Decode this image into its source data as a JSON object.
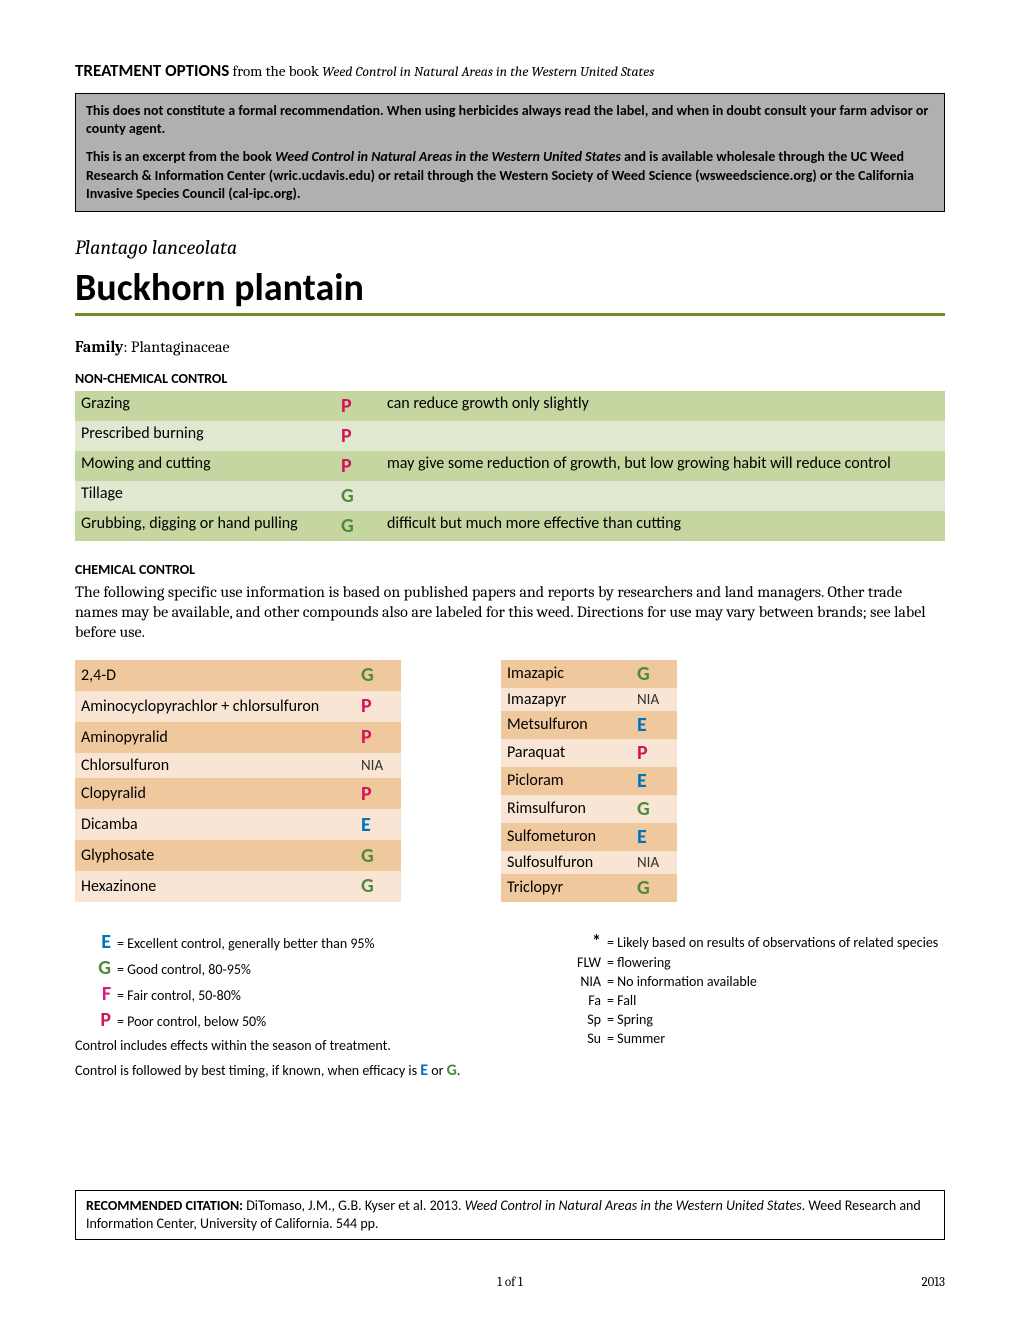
{
  "header": {
    "title_bold": "TREATMENT OPTIONS",
    "title_rest": " from the book ",
    "title_italic": "Weed Control in Natural Areas in the Western United States"
  },
  "disclaimer": {
    "p1": "This does not constitute a formal recommendation. When using herbicides always read the label, and when in doubt consult your farm advisor or county agent.",
    "p2a": "This is an excerpt from the book ",
    "p2b_italic": "Weed Control in Natural Areas in the Western United States",
    "p2c": " and is available wholesale through the UC Weed Research & Information Center (wric.ucdavis.edu) or retail through the Western Society of Weed Science (wsweedscience.org) or the California Invasive Species Council (cal-ipc.org)."
  },
  "species": {
    "latin": "Plantago lanceolata",
    "common": "Buckhorn plantain",
    "family_label": "Family",
    "family": ": Plantaginaceae"
  },
  "non_chemical": {
    "header": "NON-CHEMICAL CONTROL",
    "rows": [
      {
        "method": "Grazing",
        "rating": "P",
        "note": "can reduce growth only slightly"
      },
      {
        "method": "Prescribed burning",
        "rating": "P",
        "note": ""
      },
      {
        "method": "Mowing and cutting",
        "rating": "P",
        "note": "may give some reduction of growth, but low growing habit will reduce control"
      },
      {
        "method": "Tillage",
        "rating": "G",
        "note": ""
      },
      {
        "method": "Grubbing, digging or hand pulling",
        "rating": "G",
        "note": "difficult but much more effective than cutting"
      }
    ]
  },
  "chemical": {
    "header": "CHEMICAL CONTROL",
    "intro": "The following specific use information is based on published papers and reports by researchers and land managers. Other trade names may be available, and other compounds also are labeled for this weed. Directions for use may vary between brands; see label before use.",
    "left": [
      {
        "name": "2,4-D",
        "rating": "G"
      },
      {
        "name": "Aminocyclopyrachlor + chlorsulfuron",
        "rating": "P"
      },
      {
        "name": "Aminopyralid",
        "rating": "P"
      },
      {
        "name": "Chlorsulfuron",
        "rating": "NIA"
      },
      {
        "name": "Clopyralid",
        "rating": "P"
      },
      {
        "name": "Dicamba",
        "rating": "E"
      },
      {
        "name": "Glyphosate",
        "rating": "G"
      },
      {
        "name": "Hexazinone",
        "rating": "G"
      }
    ],
    "right": [
      {
        "name": "Imazapic",
        "rating": "G"
      },
      {
        "name": "Imazapyr",
        "rating": "NIA"
      },
      {
        "name": "Metsulfuron",
        "rating": "E"
      },
      {
        "name": "Paraquat",
        "rating": "P"
      },
      {
        "name": "Picloram",
        "rating": "E"
      },
      {
        "name": "Rimsulfuron",
        "rating": "G"
      },
      {
        "name": "Sulfometuron",
        "rating": "E"
      },
      {
        "name": "Sulfosulfuron",
        "rating": "NIA"
      },
      {
        "name": "Triclopyr",
        "rating": "G"
      }
    ]
  },
  "legend": {
    "left": [
      {
        "key": "E",
        "cls": "rating-E",
        "text": "= Excellent control, generally better than 95%"
      },
      {
        "key": "G",
        "cls": "rating-G",
        "text": "= Good control, 80-95%"
      },
      {
        "key": "F",
        "cls": "rating-F",
        "text": "= Fair control, 50-80%"
      },
      {
        "key": "P",
        "cls": "rating-P",
        "text": "= Poor control, below 50%"
      }
    ],
    "note1": "Control includes effects within the season of treatment.",
    "note2a": "Control is followed by best timing, if known, when efficacy is ",
    "note2b": " or ",
    "note2c": ".",
    "right": [
      {
        "key": "*",
        "text": "= Likely based on results of observations of related species"
      },
      {
        "key": "FLW",
        "text": "= flowering"
      },
      {
        "key": "NIA",
        "text": "= No information available"
      },
      {
        "key": "Fa",
        "text": "= Fall"
      },
      {
        "key": "Sp",
        "text": "= Spring"
      },
      {
        "key": "Su",
        "text": "= Summer"
      }
    ]
  },
  "citation": {
    "label": "RECOMMENDED CITATION:",
    "text1": " DiTomaso, J.M., G.B. Kyser et al. 2013. ",
    "italic": "Weed Control in Natural Areas in the Western United States",
    "text2": ". Weed Research and Information Center, University of California. 544 pp."
  },
  "footer": {
    "page": "1  of  1",
    "year": "2013"
  },
  "colors": {
    "green_rule": "#6b8e23",
    "row_dark_green": "#c5d6a0",
    "row_light_green": "#e0e9cf",
    "row_dark_orange": "#f0c89e",
    "row_light_orange": "#f9e5d3",
    "disclaimer_bg": "#b0b0b0",
    "color_P": "#d4145a",
    "color_G": "#4b8b3b",
    "color_E": "#0072bc",
    "color_F": "#d91b82"
  }
}
